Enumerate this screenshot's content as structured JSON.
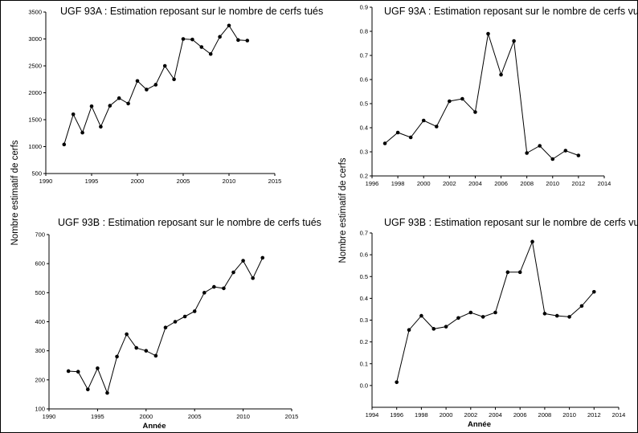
{
  "ylabel_shared": "Nombre estimatif de cerfs",
  "chart_data": [
    {
      "type": "line",
      "title": "UGF 93A : Estimation reposant sur le nombre de cerfs tués",
      "xlabel": "",
      "xlim": [
        1990,
        2015
      ],
      "xticks": [
        1990,
        1995,
        2000,
        2005,
        2010,
        2015
      ],
      "xtick_labels": [
        "1990",
        "1995",
        "2000",
        "2005",
        "2010",
        "2015"
      ],
      "ylim": [
        500,
        3500
      ],
      "yticks": [
        500,
        1000,
        1500,
        2000,
        2500,
        3000,
        3500
      ],
      "ytick_labels": [
        "500",
        "1000",
        "1500",
        "2000",
        "2500",
        "3000",
        "3500"
      ],
      "x": [
        1992,
        1993,
        1994,
        1995,
        1996,
        1997,
        1998,
        1999,
        2000,
        2001,
        2002,
        2003,
        2004,
        2005,
        2006,
        2007,
        2008,
        2009,
        2010,
        2011,
        2012
      ],
      "y": [
        1040,
        1600,
        1260,
        1750,
        1370,
        1760,
        1900,
        1800,
        2220,
        2060,
        2150,
        2500,
        2250,
        3000,
        2990,
        2850,
        2720,
        3040,
        3250,
        2980,
        2970
      ]
    },
    {
      "type": "line",
      "title": "UGF 93A : Estimation reposant sur le nombre de cerfs vus",
      "xlabel": "",
      "xlim": [
        1996,
        2014
      ],
      "xticks": [
        1996,
        1998,
        2000,
        2002,
        2004,
        2006,
        2008,
        2010,
        2012,
        2014
      ],
      "xtick_labels": [
        "1996",
        "1998",
        "2000",
        "2002",
        "2004",
        "2006",
        "2008",
        "2010",
        "2012",
        "2014"
      ],
      "ylim": [
        0.2,
        0.9
      ],
      "yticks": [
        0.2,
        0.3,
        0.4,
        0.5,
        0.6,
        0.7,
        0.8,
        0.9
      ],
      "ytick_labels": [
        "0.2",
        "0.3",
        "0.4",
        "0.5",
        "0.6",
        "0.7",
        "0.8",
        "0.9"
      ],
      "x": [
        1997,
        1998,
        1999,
        2000,
        2001,
        2002,
        2003,
        2004,
        2005,
        2006,
        2007,
        2008,
        2009,
        2010,
        2011,
        2012
      ],
      "y": [
        0.335,
        0.38,
        0.36,
        0.43,
        0.405,
        0.51,
        0.52,
        0.465,
        0.79,
        0.62,
        0.76,
        0.295,
        0.325,
        0.27,
        0.305,
        0.285
      ]
    },
    {
      "type": "line",
      "title": "UGF 93B : Estimation reposant sur le nombre de cerfs tués",
      "xlabel": "Année",
      "xlim": [
        1990,
        2015
      ],
      "xticks": [
        1990,
        1995,
        2000,
        2005,
        2010,
        2015
      ],
      "xtick_labels": [
        "1990",
        "1995",
        "2000",
        "2005",
        "2010",
        "2015"
      ],
      "ylim": [
        100,
        700
      ],
      "yticks": [
        100,
        200,
        300,
        400,
        500,
        600,
        700
      ],
      "ytick_labels": [
        "100",
        "200",
        "300",
        "400",
        "500",
        "600",
        "700"
      ],
      "x": [
        1992,
        1993,
        1994,
        1995,
        1996,
        1997,
        1998,
        1999,
        2000,
        2001,
        2002,
        2003,
        2004,
        2005,
        2006,
        2007,
        2008,
        2009,
        2010,
        2011,
        2012
      ],
      "y": [
        230,
        228,
        167,
        240,
        155,
        280,
        357,
        310,
        300,
        283,
        380,
        400,
        418,
        436,
        500,
        520,
        515,
        570,
        610,
        550,
        620
      ]
    },
    {
      "type": "line",
      "title": "UGF 93B : Estimation reposant sur le nombre de cerfs vus",
      "xlabel": "Année",
      "xlim": [
        1994,
        2014
      ],
      "xticks": [
        1994,
        1996,
        1998,
        2000,
        2002,
        2004,
        2006,
        2008,
        2010,
        2012,
        2014
      ],
      "xtick_labels": [
        "1994",
        "1996",
        "1998",
        "2000",
        "2002",
        "2004",
        "2006",
        "2008",
        "2010",
        "2012",
        "2014"
      ],
      "ylim": [
        -0.1,
        0.7
      ],
      "yticks": [
        0.0,
        0.1,
        0.2,
        0.3,
        0.4,
        0.5,
        0.6,
        0.7
      ],
      "ytick_labels": [
        "0.0",
        "0.1",
        "0.2",
        "0.3",
        "0.4",
        "0.5",
        "0.6",
        "0.7"
      ],
      "x": [
        1996,
        1997,
        1998,
        1999,
        2000,
        2001,
        2002,
        2003,
        2004,
        2005,
        2006,
        2007,
        2008,
        2009,
        2010,
        2011,
        2012
      ],
      "y": [
        0.015,
        0.255,
        0.32,
        0.26,
        0.27,
        0.31,
        0.335,
        0.315,
        0.335,
        0.52,
        0.52,
        0.66,
        0.33,
        0.32,
        0.315,
        0.365,
        0.43
      ]
    }
  ]
}
